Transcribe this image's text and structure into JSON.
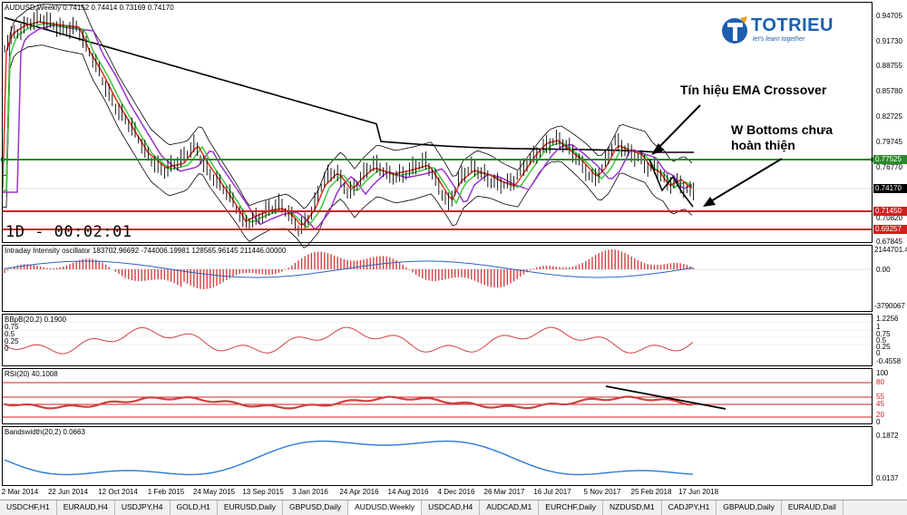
{
  "chart_title": "AUDUSD,Weekly  0.74152 0.74414 0.73169 0.74170",
  "logo": {
    "brand": "TOTRIEU",
    "tagline": "let's learn together"
  },
  "annotations": {
    "ema_signal": "Tín hiệu EMA Crossover",
    "w_bottoms_1": "W Bottoms chưa",
    "w_bottoms_2": "hoàn thiện"
  },
  "timer": "1D - 00:02:01",
  "price_axis": [
    "0.94705",
    "0.91730",
    "0.88755",
    "0.85780",
    "0.82725",
    "0.79745",
    "0.76770",
    "0.70820",
    "0.67845"
  ],
  "price_tags": {
    "green_level": "0.77525",
    "current": "0.74170",
    "red_level_1": "0.71450",
    "red_level_2": "0.69257"
  },
  "panes": {
    "iii": {
      "title": "Intraday Intensity oscillator 183702.96692 -744006.19981 128565.96145 211446.00000",
      "axis": [
        "2144701.4",
        "0.00",
        "-3790067"
      ]
    },
    "bb": {
      "title": "BBpB(20,2) 0.1900",
      "axis": [
        "1.2256",
        "1",
        "0.75",
        "0.5",
        "0.25",
        "0",
        "-0.4558"
      ],
      "inner": [
        "0.75",
        "0.5",
        "0.25",
        "0"
      ]
    },
    "rsi": {
      "title": "RSI(20) 40.1008",
      "axis": [
        "100",
        "80",
        "55",
        "45",
        "20",
        "0"
      ]
    },
    "bw": {
      "title": "Bandswidth(20,2) 0.0663",
      "axis": [
        "0.1872",
        "0.0137"
      ]
    }
  },
  "dates": [
    "2 Mar 2014",
    "22 Jun 2014",
    "12 Oct 2014",
    "1 Feb 2015",
    "24 May 2015",
    "13 Sep 2015",
    "3 Jan 2016",
    "24 Apr 2016",
    "14 Aug 2016",
    "4 Dec 2016",
    "26 Mar 2017",
    "16 Jul 2017",
    "5 Nov 2017",
    "25 Feb 2018",
    "17 Jun 2018"
  ],
  "tabs": [
    "USDCHF,H1",
    "EURAUD,H4",
    "USDJPY,H4",
    "GOLD,H1",
    "EURUSD,Daily",
    "GBPUSD,Daily",
    "AUDUSD,Weekly",
    "USDCAD,H4",
    "AUDCAD,M1",
    "EURCHF,Daily",
    "NZDUSD,M1",
    "CADJPY,H1",
    "GBPAUD,Daily",
    "EURAUD,Dail"
  ],
  "active_tab": "AUDUSD,Weekly",
  "colors": {
    "candles": "#000000",
    "ema_fast": "#e03020",
    "ema_mid": "#3cc83c",
    "ema_slow": "#9b30d0",
    "ma_long": "#000000",
    "bands": "#000000",
    "support": "#d02020",
    "resistance": "#2a8a2a",
    "histogram": "#d04040",
    "bandwidth": "#2a7ad8",
    "logo": "#1c5fb0"
  }
}
